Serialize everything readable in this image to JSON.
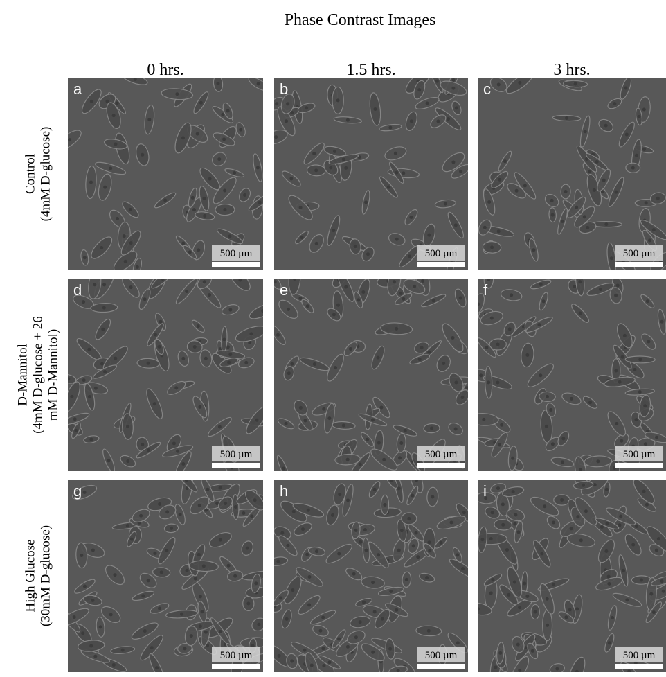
{
  "title": "Phase Contrast Images",
  "columns": [
    "0 hrs.",
    "1.5 hrs.",
    "3 hrs."
  ],
  "rows": [
    {
      "label": [
        "Control",
        "(4mM D-glucose)"
      ],
      "panels": [
        {
          "letter": "a",
          "scale": "500 µm"
        },
        {
          "letter": "b",
          "scale": "500 µm"
        },
        {
          "letter": "c",
          "scale": "500 µm"
        }
      ]
    },
    {
      "label": [
        "D-Mannitol",
        "(4mM D-glucose + 26",
        "mM D-Mannitol)"
      ],
      "panels": [
        {
          "letter": "d",
          "scale": "500 µm"
        },
        {
          "letter": "e",
          "scale": "500 µm"
        },
        {
          "letter": "f",
          "scale": "500 µm"
        }
      ]
    },
    {
      "label": [
        "High Glucose",
        "(30mM D-glucose)"
      ],
      "panels": [
        {
          "letter": "g",
          "scale": "500 µm"
        },
        {
          "letter": "h",
          "scale": "500 µm"
        },
        {
          "letter": "i",
          "scale": "500 µm"
        }
      ]
    }
  ]
}
